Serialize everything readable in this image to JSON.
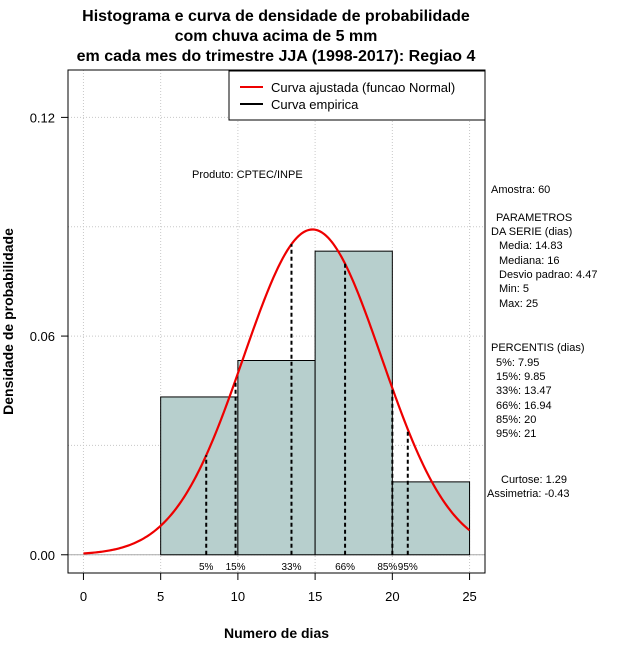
{
  "chart_data": {
    "type": "bar",
    "title_lines": [
      "Histograma e curva de densidade de probabilidade",
      "com chuva acima de 5 mm",
      "em cada mes do trimestre JJA (1998-2017): Regiao 4"
    ],
    "xlabel": "Numero de dias",
    "ylabel": "Densidade de probabilidade",
    "xlim": [
      -1,
      26
    ],
    "ylim": [
      -0.005,
      0.133
    ],
    "x_ticks": [
      0,
      5,
      10,
      15,
      20,
      25
    ],
    "y_ticks": [
      0.0,
      0.06,
      0.12
    ],
    "y_tick_labels": [
      "0.00",
      "0.06",
      "0.12"
    ],
    "bins": [
      {
        "x0": 5,
        "x1": 10,
        "density": 0.0433
      },
      {
        "x0": 10,
        "x1": 15,
        "density": 0.0533
      },
      {
        "x0": 15,
        "x1": 20,
        "density": 0.0833
      },
      {
        "x0": 20,
        "x1": 25,
        "density": 0.02
      }
    ],
    "normal_fit": {
      "mean": 14.83,
      "sd": 4.47,
      "x_from": 0,
      "x_to": 25,
      "color": "#ee0000"
    },
    "percentiles": [
      {
        "label": "5%",
        "value": 7.95
      },
      {
        "label": "15%",
        "value": 9.85
      },
      {
        "label": "33%",
        "value": 13.47
      },
      {
        "label": "66%",
        "value": 16.94
      },
      {
        "label": "85%",
        "value": 20
      },
      {
        "label": "95%",
        "value": 21
      }
    ],
    "grid": true,
    "legend": {
      "position": "top-right",
      "entries": [
        {
          "label": "Curva ajustada (funcao Normal)",
          "color": "#ee0000"
        },
        {
          "label": "Curva empirica",
          "color": "#000000"
        }
      ]
    },
    "bar_fill": "#b7cfcd",
    "product_text": "Produto: CPTEC/INPE",
    "side_text": [
      "Amostra: 60",
      "PARAMETROS",
      "DA SERIE (dias)",
      "Media: 14.83",
      "Mediana: 16",
      "Desvio padrao: 4.47",
      "Min: 5",
      "Max: 25",
      "PERCENTIS (dias)",
      "5%: 7.95",
      "15%: 9.85",
      "33%: 13.47",
      "66%: 16.94",
      "85%: 20",
      "95%: 21",
      "Curtose: 1.29",
      "Assimetria: -0.43"
    ]
  }
}
